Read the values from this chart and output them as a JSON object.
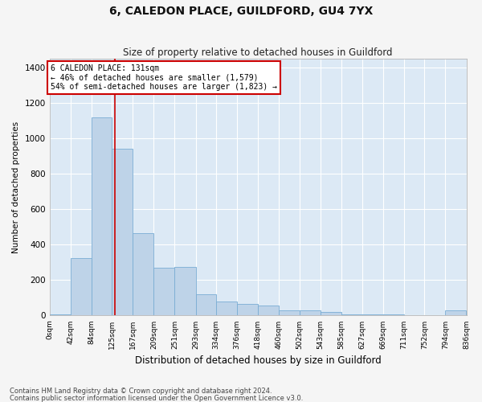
{
  "title": "6, CALEDON PLACE, GUILDFORD, GU4 7YX",
  "subtitle": "Size of property relative to detached houses in Guildford",
  "xlabel": "Distribution of detached houses by size in Guildford",
  "ylabel": "Number of detached properties",
  "bar_color": "#bed3e8",
  "bar_edge_color": "#7aadd4",
  "background_color": "#dce9f5",
  "grid_color": "#ffffff",
  "fig_background": "#f5f5f5",
  "annotation_box_color": "#cc0000",
  "vline_color": "#cc0000",
  "vline_x": 131,
  "annotation_text_line1": "6 CALEDON PLACE: 131sqm",
  "annotation_text_line2": "← 46% of detached houses are smaller (1,579)",
  "annotation_text_line3": "54% of semi-detached houses are larger (1,823) →",
  "footnote1": "Contains HM Land Registry data © Crown copyright and database right 2024.",
  "footnote2": "Contains public sector information licensed under the Open Government Licence v3.0.",
  "bin_edges": [
    0,
    42,
    84,
    125,
    167,
    209,
    251,
    293,
    334,
    376,
    418,
    460,
    502,
    543,
    585,
    627,
    669,
    711,
    752,
    794,
    836
  ],
  "bin_labels": [
    "0sqm",
    "42sqm",
    "84sqm",
    "125sqm",
    "167sqm",
    "209sqm",
    "251sqm",
    "293sqm",
    "334sqm",
    "376sqm",
    "418sqm",
    "460sqm",
    "502sqm",
    "543sqm",
    "585sqm",
    "627sqm",
    "669sqm",
    "711sqm",
    "752sqm",
    "794sqm",
    "836sqm"
  ],
  "bar_heights": [
    5,
    325,
    1120,
    940,
    465,
    270,
    275,
    120,
    80,
    65,
    55,
    30,
    30,
    20,
    5,
    5,
    5,
    0,
    0,
    30
  ],
  "ylim": [
    0,
    1450
  ],
  "yticks": [
    0,
    200,
    400,
    600,
    800,
    1000,
    1200,
    1400
  ]
}
